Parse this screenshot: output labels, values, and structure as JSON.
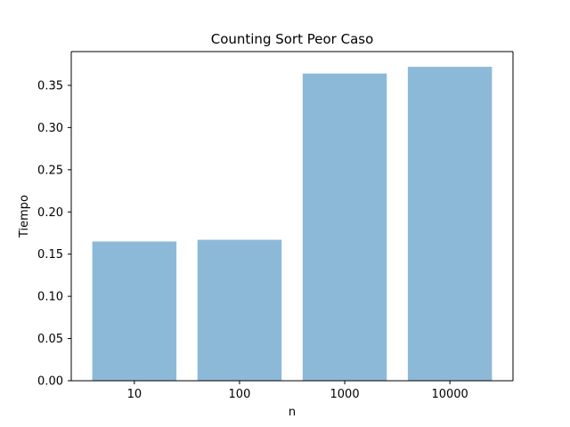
{
  "chart_data": {
    "type": "bar",
    "title": "Counting Sort Peor Caso",
    "xlabel": "n",
    "ylabel": "Tiempo",
    "categories": [
      "10",
      "100",
      "1000",
      "10000"
    ],
    "values": [
      0.165,
      0.167,
      0.364,
      0.372
    ],
    "ylim": [
      0,
      0.39
    ],
    "yticks": [
      "0.00",
      "0.05",
      "0.10",
      "0.15",
      "0.20",
      "0.25",
      "0.30",
      "0.35"
    ],
    "ytick_values": [
      0,
      0.05,
      0.1,
      0.15,
      0.2,
      0.25,
      0.3,
      0.35
    ],
    "bar_color": "#8db9d9",
    "grid": false,
    "legend": "none"
  }
}
